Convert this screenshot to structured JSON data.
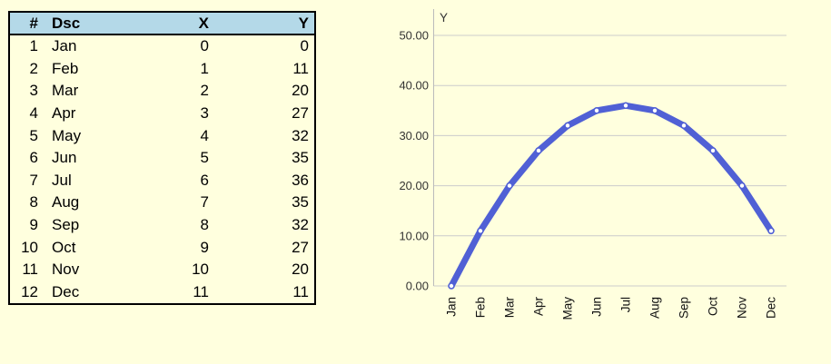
{
  "page": {
    "background": "#FFFFDE"
  },
  "table": {
    "header_bg": "#B4D9E8",
    "border_color": "#000000",
    "headers": [
      "#",
      "Dsc",
      "X",
      "Y"
    ],
    "rows": [
      {
        "num": "1",
        "dsc": "Jan",
        "x": "0",
        "y": "0"
      },
      {
        "num": "2",
        "dsc": "Feb",
        "x": "1",
        "y": "11"
      },
      {
        "num": "3",
        "dsc": "Mar",
        "x": "2",
        "y": "20"
      },
      {
        "num": "4",
        "dsc": "Apr",
        "x": "3",
        "y": "27"
      },
      {
        "num": "5",
        "dsc": "May",
        "x": "4",
        "y": "32"
      },
      {
        "num": "6",
        "dsc": "Jun",
        "x": "5",
        "y": "35"
      },
      {
        "num": "7",
        "dsc": "Jul",
        "x": "6",
        "y": "36"
      },
      {
        "num": "8",
        "dsc": "Aug",
        "x": "7",
        "y": "35"
      },
      {
        "num": "9",
        "dsc": "Sep",
        "x": "8",
        "y": "32"
      },
      {
        "num": "10",
        "dsc": "Oct",
        "x": "9",
        "y": "27"
      },
      {
        "num": "11",
        "dsc": "Nov",
        "x": "10",
        "y": "20"
      },
      {
        "num": "12",
        "dsc": "Dec",
        "x": "11",
        "y": "11"
      }
    ]
  },
  "chart_data": {
    "type": "line",
    "title": "",
    "ylabel": "Y",
    "xlabel": "",
    "categories": [
      "Jan",
      "Feb",
      "Mar",
      "Apr",
      "May",
      "Jun",
      "Jul",
      "Aug",
      "Sep",
      "Oct",
      "Nov",
      "Dec"
    ],
    "x": [
      0,
      1,
      2,
      3,
      4,
      5,
      6,
      7,
      8,
      9,
      10,
      11
    ],
    "series": [
      {
        "name": "Y",
        "values": [
          0,
          11,
          20,
          27,
          32,
          35,
          36,
          35,
          32,
          27,
          20,
          11
        ]
      }
    ],
    "ylim": [
      0,
      50
    ],
    "ytick_labels": [
      "0.00",
      "10.00",
      "20.00",
      "30.00",
      "40.00",
      "50.00"
    ],
    "grid": true,
    "legend_position": "none",
    "colors": {
      "line": "#5060D5",
      "marker_fill": "#FFFFFF",
      "grid_line": "#CCCCCC",
      "axis_line": "#BBBBBB",
      "axis_text": "#333333",
      "category_text": "#111111"
    }
  }
}
